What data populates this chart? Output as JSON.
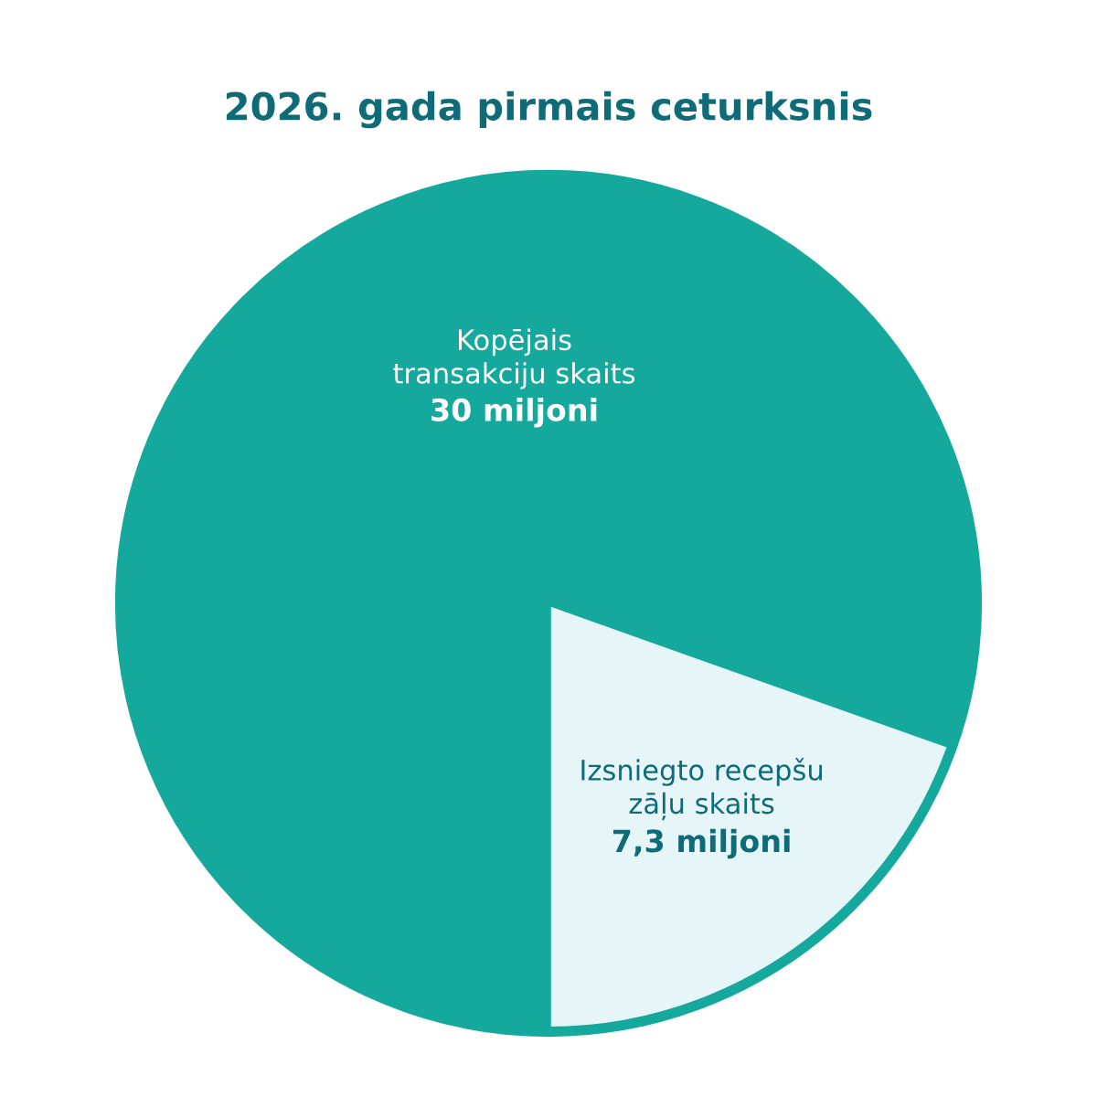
{
  "chart_data": {
    "type": "pie",
    "title": "2026. gada pirmais ceturksnis",
    "categories": [
      "Kopējais\ntransakciju skaits",
      "Izsniegto recepšu\nzāļu skaits"
    ],
    "values": [
      30,
      7.3
    ],
    "value_labels": [
      "30 miljoni",
      "7,3 miljoni"
    ],
    "colors": [
      "#15a89c",
      "#e6f5f8"
    ]
  }
}
